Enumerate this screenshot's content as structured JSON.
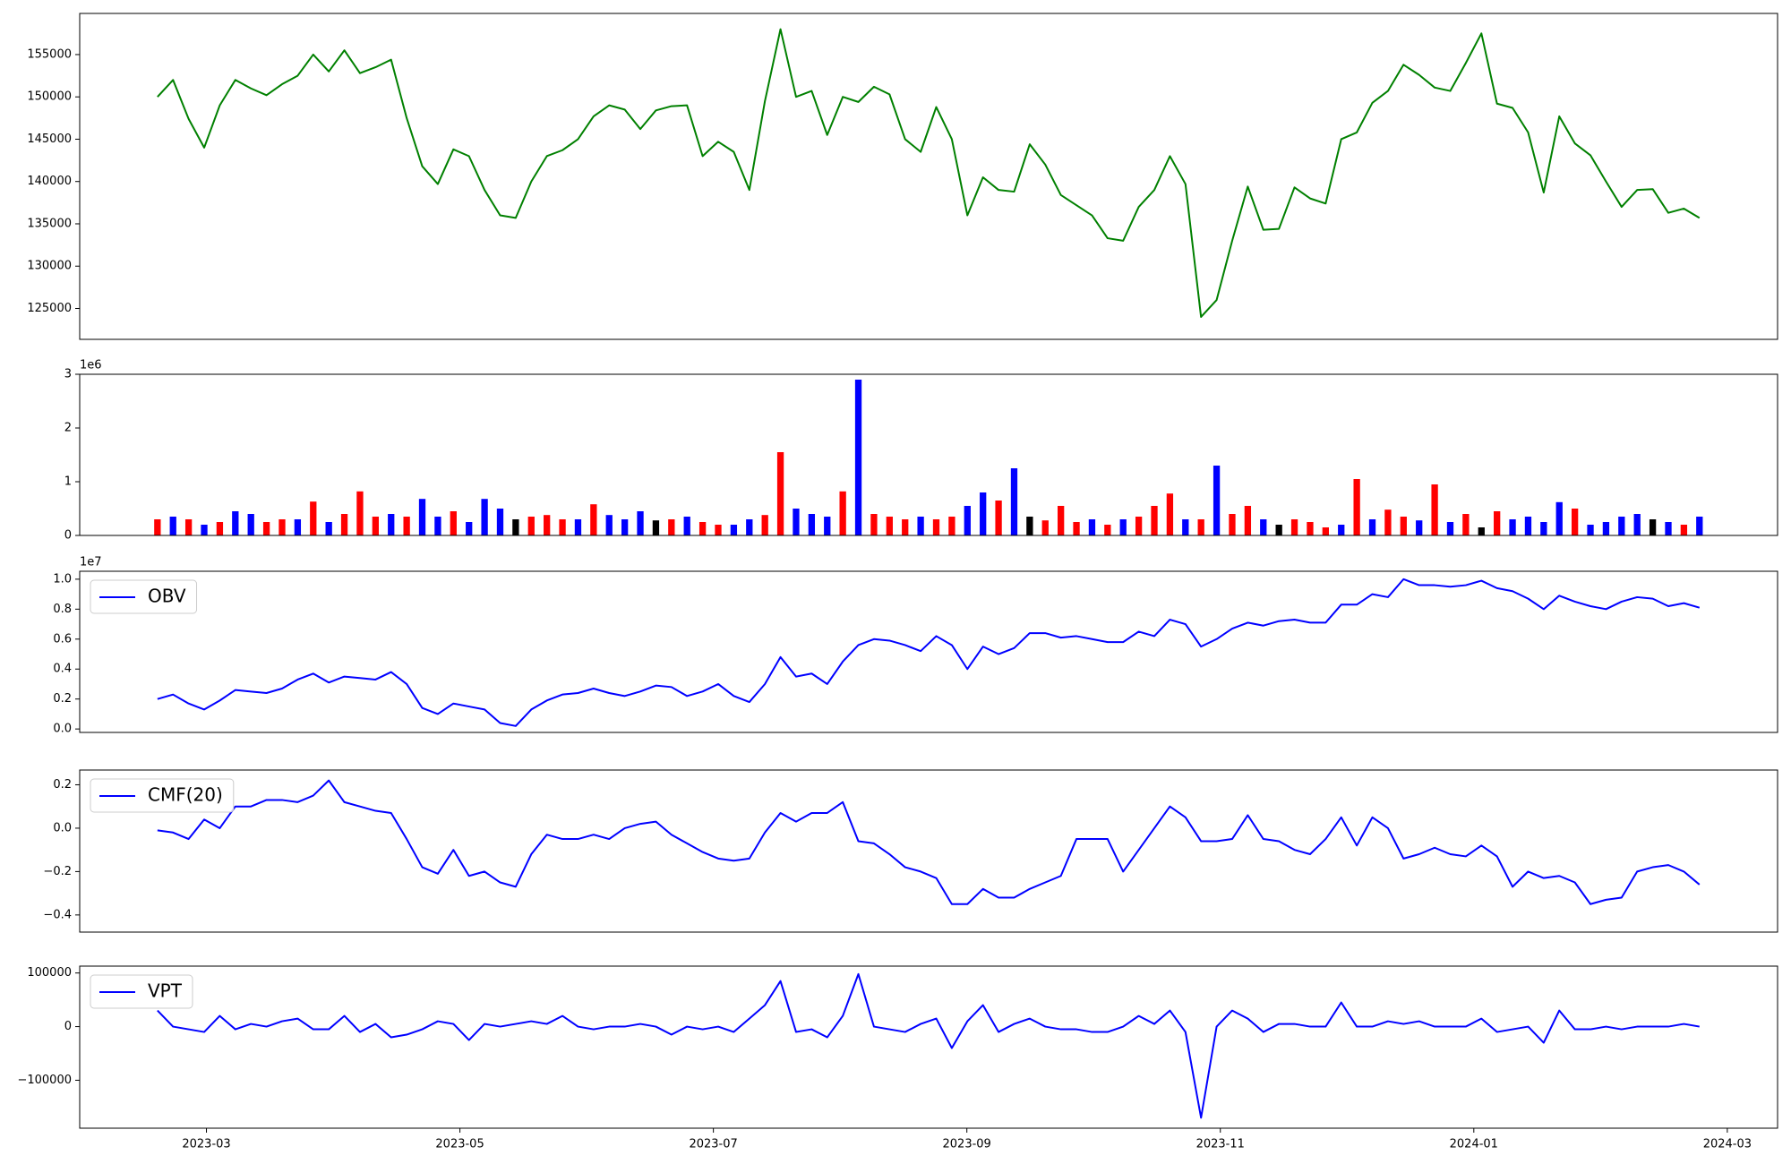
{
  "chart_data": [
    {
      "type": "line",
      "color": "green",
      "values": [
        150000,
        152000,
        147400,
        144000,
        149000,
        152000,
        151000,
        150200,
        151500,
        152500,
        155000,
        153000,
        155500,
        152800,
        153500,
        154400,
        147500,
        141800,
        139700,
        143800,
        143000,
        139000,
        136000,
        135700,
        140000,
        143000,
        143700,
        145000,
        147700,
        149000,
        148500,
        146200,
        148400,
        148900,
        149000,
        143000,
        144700,
        143500,
        139000,
        149500,
        158000,
        150000,
        150700,
        145500,
        150000,
        149400,
        151200,
        150300,
        145000,
        143500,
        148800,
        145000,
        136000,
        140500,
        139000,
        138800,
        144400,
        142000,
        138400,
        137200,
        136000,
        133300,
        133000,
        137000,
        139000,
        143000,
        139700,
        124000,
        126000,
        133000,
        139400,
        134300,
        134400,
        139300,
        138000,
        137400,
        145000,
        145800,
        149300,
        150700,
        153800,
        152600,
        151100,
        150700,
        154000,
        157500,
        149200,
        148700,
        145800,
        138700,
        147700,
        144500,
        143100,
        140000,
        137000,
        139000,
        139100,
        136300,
        136800,
        135700
      ],
      "ylim": [
        121350,
        159860
      ],
      "yticks": [
        125000,
        130000,
        135000,
        140000,
        145000,
        150000,
        155000
      ]
    },
    {
      "type": "bar",
      "offset_text": "1e6",
      "values": [
        0.3,
        0.35,
        0.3,
        0.2,
        0.25,
        0.45,
        0.4,
        0.25,
        0.3,
        0.3,
        0.63,
        0.25,
        0.4,
        0.82,
        0.35,
        0.4,
        0.35,
        0.68,
        0.35,
        0.45,
        0.25,
        0.68,
        0.5,
        0.3,
        0.35,
        0.38,
        0.3,
        0.3,
        0.58,
        0.38,
        0.3,
        0.45,
        0.28,
        0.3,
        0.35,
        0.25,
        0.2,
        0.2,
        0.3,
        0.38,
        1.55,
        0.5,
        0.4,
        0.35,
        0.82,
        2.9,
        0.4,
        0.35,
        0.3,
        0.35,
        0.3,
        0.35,
        0.55,
        0.8,
        0.65,
        1.25,
        0.35,
        0.28,
        0.55,
        0.25,
        0.3,
        0.2,
        0.3,
        0.35,
        0.55,
        0.78,
        0.3,
        0.3,
        1.3,
        0.4,
        0.55,
        0.3,
        0.2,
        0.3,
        0.25,
        0.15,
        0.2,
        1.05,
        0.3,
        0.48,
        0.35,
        0.28,
        0.95,
        0.25,
        0.4,
        0.15,
        0.45,
        0.3,
        0.35,
        0.25,
        0.62,
        0.5,
        0.2,
        0.25,
        0.35,
        0.4,
        0.3,
        0.25,
        0.2,
        0.35
      ],
      "colors": [
        "red",
        "blue",
        "red",
        "blue",
        "red",
        "blue",
        "blue",
        "red",
        "red",
        "blue",
        "red",
        "blue",
        "red",
        "red",
        "red",
        "blue",
        "red",
        "blue",
        "blue",
        "red",
        "blue",
        "blue",
        "blue",
        "black",
        "red",
        "red",
        "red",
        "blue",
        "red",
        "blue",
        "blue",
        "blue",
        "black",
        "red",
        "blue",
        "red",
        "red",
        "blue",
        "blue",
        "red",
        "red",
        "blue",
        "blue",
        "blue",
        "red",
        "blue",
        "red",
        "red",
        "red",
        "blue",
        "red",
        "red",
        "blue",
        "blue",
        "red",
        "blue",
        "black",
        "red",
        "red",
        "red",
        "blue",
        "red",
        "blue",
        "red",
        "red",
        "red",
        "blue",
        "red",
        "blue",
        "red",
        "red",
        "blue",
        "black",
        "red",
        "red",
        "red",
        "blue",
        "red",
        "blue",
        "red",
        "red",
        "blue",
        "red",
        "blue",
        "red",
        "black",
        "red",
        "blue",
        "blue",
        "blue",
        "blue",
        "red",
        "blue",
        "blue",
        "blue",
        "blue",
        "black",
        "blue",
        "red",
        "blue"
      ],
      "ylim": [
        0,
        3
      ],
      "yticks": [
        0,
        1,
        2,
        3
      ]
    },
    {
      "type": "line",
      "offset_text": "1e7",
      "legend": "upper left",
      "series": [
        {
          "name": "OBV",
          "color": "blue",
          "values": [
            0.2,
            0.23,
            0.17,
            0.13,
            0.19,
            0.26,
            0.25,
            0.24,
            0.27,
            0.33,
            0.37,
            0.31,
            0.35,
            0.34,
            0.33,
            0.38,
            0.3,
            0.14,
            0.1,
            0.17,
            0.15,
            0.13,
            0.04,
            0.02,
            0.13,
            0.19,
            0.23,
            0.24,
            0.27,
            0.24,
            0.22,
            0.25,
            0.29,
            0.28,
            0.22,
            0.25,
            0.3,
            0.22,
            0.18,
            0.3,
            0.48,
            0.35,
            0.37,
            0.3,
            0.45,
            0.56,
            0.6,
            0.59,
            0.56,
            0.52,
            0.62,
            0.56,
            0.4,
            0.55,
            0.5,
            0.54,
            0.64,
            0.64,
            0.61,
            0.62,
            0.6,
            0.58,
            0.58,
            0.65,
            0.62,
            0.73,
            0.7,
            0.55,
            0.6,
            0.67,
            0.71,
            0.69,
            0.72,
            0.73,
            0.71,
            0.71,
            0.83,
            0.83,
            0.9,
            0.88,
            1.0,
            0.96,
            0.96,
            0.95,
            0.96,
            0.99,
            0.94,
            0.92,
            0.87,
            0.8,
            0.89,
            0.85,
            0.82,
            0.8,
            0.85,
            0.88,
            0.87,
            0.82,
            0.84,
            0.81
          ]
        }
      ],
      "ylim": [
        -0.023,
        1.053
      ],
      "yticks": [
        {
          "value": 0,
          "label": "0.0"
        },
        {
          "value": 0.2,
          "label": "0.2"
        },
        {
          "value": 0.4,
          "label": "0.4"
        },
        {
          "value": 0.6,
          "label": "0.6"
        },
        {
          "value": 0.8,
          "label": "0.8"
        },
        {
          "value": 1,
          "label": "1.0"
        }
      ]
    },
    {
      "type": "line",
      "legend": "upper left",
      "series": [
        {
          "name": "CMF(20)",
          "color": "blue",
          "values": [
            -0.01,
            -0.02,
            -0.05,
            0.04,
            0.0,
            0.1,
            0.1,
            0.13,
            0.13,
            0.12,
            0.15,
            0.22,
            0.12,
            0.1,
            0.08,
            0.07,
            -0.05,
            -0.18,
            -0.21,
            -0.1,
            -0.22,
            -0.2,
            -0.25,
            -0.27,
            -0.12,
            -0.03,
            -0.05,
            -0.05,
            -0.03,
            -0.05,
            0.0,
            0.02,
            0.03,
            -0.03,
            -0.07,
            -0.11,
            -0.14,
            -0.15,
            -0.14,
            -0.02,
            0.07,
            0.03,
            0.07,
            0.07,
            0.12,
            -0.06,
            -0.07,
            -0.12,
            -0.18,
            -0.2,
            -0.23,
            -0.35,
            -0.35,
            -0.28,
            -0.32,
            -0.32,
            -0.28,
            -0.25,
            -0.22,
            -0.05,
            -0.05,
            -0.05,
            -0.2,
            -0.1,
            0.0,
            0.1,
            0.05,
            -0.06,
            -0.06,
            -0.05,
            0.06,
            -0.05,
            -0.06,
            -0.1,
            -0.12,
            -0.05,
            0.05,
            -0.08,
            0.05,
            0.0,
            -0.14,
            -0.12,
            -0.09,
            -0.12,
            -0.13,
            -0.08,
            -0.13,
            -0.27,
            -0.2,
            -0.23,
            -0.22,
            -0.25,
            -0.35,
            -0.33,
            -0.32,
            -0.2,
            -0.18,
            -0.17,
            -0.2,
            -0.26
          ]
        }
      ],
      "ylim": [
        -0.479,
        0.268
      ],
      "yticks": [
        {
          "value": -0.4,
          "label": "−0.4"
        },
        {
          "value": -0.2,
          "label": "−0.2"
        },
        {
          "value": 0,
          "label": "0.0"
        },
        0.2
      ]
    },
    {
      "type": "line",
      "legend": "upper left",
      "series": [
        {
          "name": "VPT",
          "color": "blue",
          "values": [
            30000,
            0,
            -5000,
            -10000,
            20000,
            -5000,
            5000,
            0,
            10000,
            15000,
            -5000,
            -5000,
            20000,
            -10000,
            5000,
            -20000,
            -15000,
            -5000,
            10000,
            5000,
            -25000,
            5000,
            0,
            5000,
            10000,
            5000,
            20000,
            0,
            -5000,
            0,
            0,
            5000,
            0,
            -15000,
            0,
            -5000,
            0,
            -10000,
            15000,
            40000,
            85000,
            -10000,
            -5000,
            -20000,
            20000,
            98000,
            0,
            -5000,
            -10000,
            5000,
            15000,
            -40000,
            10000,
            40000,
            -10000,
            5000,
            15000,
            0,
            -5000,
            -5000,
            -10000,
            -10000,
            0,
            20000,
            5000,
            30000,
            -10000,
            -170000,
            0,
            30000,
            15000,
            -10000,
            5000,
            5000,
            0,
            0,
            45000,
            0,
            0,
            10000,
            5000,
            10000,
            0,
            0,
            0,
            15000,
            -10000,
            -5000,
            0,
            -30000,
            30000,
            -5000,
            -5000,
            0,
            -5000,
            0,
            0,
            0,
            5000,
            0
          ]
        }
      ],
      "ylim": [
        -189400,
        112800
      ],
      "yticks": [
        {
          "value": -100000,
          "label": "−100000"
        },
        0,
        100000
      ],
      "xlim": [
        "2023-02",
        "2024-03"
      ],
      "xticks": [
        "2023-03",
        "2023-05",
        "2023-07",
        "2023-09",
        "2023-11",
        "2024-01",
        "2024-03"
      ]
    }
  ]
}
